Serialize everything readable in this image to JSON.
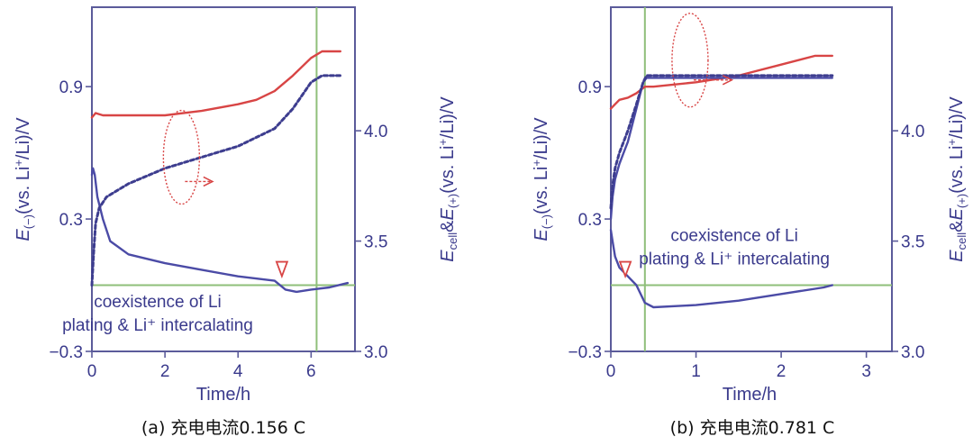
{
  "colors": {
    "negative_electrode": "#4b4ba6",
    "cell": "#d84545",
    "positive_electrode_dotted": "#3d3d8f",
    "reference_lines": "#8fbf7a",
    "frame": "#5b5b9a"
  },
  "chart_data": [
    {
      "type": "line",
      "caption_label": "(a) 充电电流",
      "caption_value": "0.156 C",
      "xlabel": "Time/h",
      "ylabel_left": {
        "base": "E",
        "sub": "(−)",
        "rest": "(vs. Li",
        "sup": "+",
        "tail": "/Li)/V"
      },
      "ylabel_right": {
        "base1": "E",
        "sub1": "cell",
        "amp": "&",
        "base2": "E",
        "sub2": "(+)",
        "rest": "(vs. Li",
        "sup": "+",
        "tail": "/Li)/V"
      },
      "xlim": [
        0,
        7.2
      ],
      "ylim_left": [
        -0.3,
        1.26
      ],
      "ylim_right": [
        3.0,
        4.56
      ],
      "x_ticks": [
        "0",
        "2",
        "4",
        "6"
      ],
      "x_tick_values": [
        0,
        2,
        4,
        6
      ],
      "y_ticks_left": [
        "0.9",
        "0.3",
        "−0.3"
      ],
      "y_tick_values_left": [
        0.9,
        0.3,
        -0.3
      ],
      "y_ticks_right": [
        "4.0",
        "3.5",
        "3.0"
      ],
      "y_tick_values_right": [
        4.0,
        3.5,
        3.0
      ],
      "grid": false,
      "hline_left": 0.0,
      "vline_x": 6.15,
      "annotation_lines": [
        "coexistence of Li",
        "plating & Li⁺ intercalating"
      ],
      "annotation_pos": {
        "x": 1.8,
        "y_left": -0.1
      },
      "marker_x": 5.2,
      "ellipse_center": {
        "x": 2.45,
        "y_left": 0.58
      },
      "arrow_to": {
        "x": 3.3,
        "y_left": 0.47
      },
      "series": [
        {
          "axis": "left",
          "style": "solid",
          "color_key": "negative_electrode",
          "x": [
            0,
            0.03,
            0.08,
            0.15,
            0.3,
            0.5,
            1,
            1.5,
            2,
            3,
            4,
            5,
            5.3,
            5.6,
            6,
            6.5,
            7
          ],
          "y": [
            0.5,
            0.53,
            0.5,
            0.4,
            0.3,
            0.2,
            0.14,
            0.12,
            0.1,
            0.07,
            0.04,
            0.02,
            -0.02,
            -0.03,
            -0.02,
            -0.01,
            0.01
          ]
        },
        {
          "axis": "left",
          "style": "solid",
          "color_key": "cell",
          "x": [
            0,
            0.1,
            0.3,
            0.6,
            1,
            2,
            3,
            4,
            4.5,
            5,
            5.5,
            6,
            6.3,
            6.6,
            6.8
          ],
          "y": [
            0.76,
            0.78,
            0.77,
            0.77,
            0.77,
            0.77,
            0.79,
            0.82,
            0.84,
            0.88,
            0.95,
            1.03,
            1.06,
            1.06,
            1.06
          ]
        },
        {
          "axis": "right",
          "style": "dotted",
          "color_key": "positive_electrode_dotted",
          "x": [
            0,
            0.05,
            0.1,
            0.2,
            0.4,
            0.6,
            1,
            2,
            3,
            4,
            5,
            5.5,
            6,
            6.3,
            6.6,
            6.8
          ],
          "y": [
            3.3,
            3.45,
            3.58,
            3.65,
            3.7,
            3.72,
            3.76,
            3.83,
            3.88,
            3.93,
            4.01,
            4.1,
            4.22,
            4.25,
            4.25,
            4.25
          ]
        }
      ]
    },
    {
      "type": "line",
      "caption_label": "(b) 充电电流",
      "caption_value": "0.781 C",
      "xlabel": "Time/h",
      "ylabel_left": {
        "base": "E",
        "sub": "(−)",
        "rest": "(vs. Li",
        "sup": "+",
        "tail": "/Li)/V"
      },
      "ylabel_right": {
        "base1": "E",
        "sub1": "cell",
        "amp": "&",
        "base2": "E",
        "sub2": "(+)",
        "rest": "(vs. Li",
        "sup": "+",
        "tail": "/Li)/V"
      },
      "xlim": [
        0,
        3.3
      ],
      "ylim_left": [
        -0.3,
        1.26
      ],
      "ylim_right": [
        3.0,
        4.56
      ],
      "x_ticks": [
        "0",
        "1",
        "2",
        "3"
      ],
      "x_tick_values": [
        0,
        1,
        2,
        3
      ],
      "y_ticks_left": [
        "0.9",
        "0.3",
        "−0.3"
      ],
      "y_tick_values_left": [
        0.9,
        0.3,
        -0.3
      ],
      "y_ticks_right": [
        "4.0",
        "3.5",
        "3.0"
      ],
      "y_tick_values_right": [
        4.0,
        3.5,
        3.0
      ],
      "grid": false,
      "hline_left": 0.0,
      "vline_x": 0.4,
      "annotation_lines": [
        "coexistence of Li",
        "plating & Li⁺ intercalating"
      ],
      "annotation_pos": {
        "x": 1.45,
        "y_left": 0.2
      },
      "marker_x": 0.17,
      "ellipse_center": {
        "x": 0.93,
        "y_left": 1.02
      },
      "arrow_to": {
        "x": 1.42,
        "y_left": 0.93
      },
      "series": [
        {
          "axis": "left",
          "style": "solid",
          "color_key": "negative_electrode",
          "x": [
            0,
            0.02,
            0.05,
            0.1,
            0.2,
            0.3,
            0.4,
            0.5,
            1,
            1.5,
            2,
            2.5,
            2.6
          ],
          "y": [
            0.25,
            0.2,
            0.13,
            0.08,
            0.04,
            0.0,
            -0.08,
            -0.1,
            -0.09,
            -0.07,
            -0.04,
            -0.01,
            0.0
          ]
        },
        {
          "axis": "left",
          "style": "solid",
          "color_key": "cell",
          "x": [
            0,
            0.05,
            0.1,
            0.2,
            0.3,
            0.4,
            0.5,
            1,
            1.5,
            2,
            2.4,
            2.6
          ],
          "y": [
            0.8,
            0.82,
            0.84,
            0.85,
            0.87,
            0.9,
            0.9,
            0.92,
            0.95,
            1.0,
            1.04,
            1.04
          ]
        },
        {
          "axis": "right",
          "style": "solid",
          "color_key": "negative_electrode",
          "x": [
            0,
            0.02,
            0.05,
            0.1,
            0.15,
            0.2,
            0.3,
            0.38,
            0.42,
            1,
            2,
            2.6
          ],
          "y": [
            3.6,
            3.7,
            3.78,
            3.85,
            3.9,
            3.95,
            4.1,
            4.22,
            4.24,
            4.24,
            4.24,
            4.24
          ]
        },
        {
          "axis": "right",
          "style": "dotted",
          "color_key": "positive_electrode_dotted",
          "x": [
            0,
            0.02,
            0.05,
            0.1,
            0.15,
            0.2,
            0.3,
            0.38,
            0.42,
            1,
            2,
            2.6
          ],
          "y": [
            3.65,
            3.75,
            3.83,
            3.9,
            3.95,
            4.0,
            4.12,
            4.22,
            4.25,
            4.25,
            4.25,
            4.25
          ]
        }
      ]
    }
  ]
}
